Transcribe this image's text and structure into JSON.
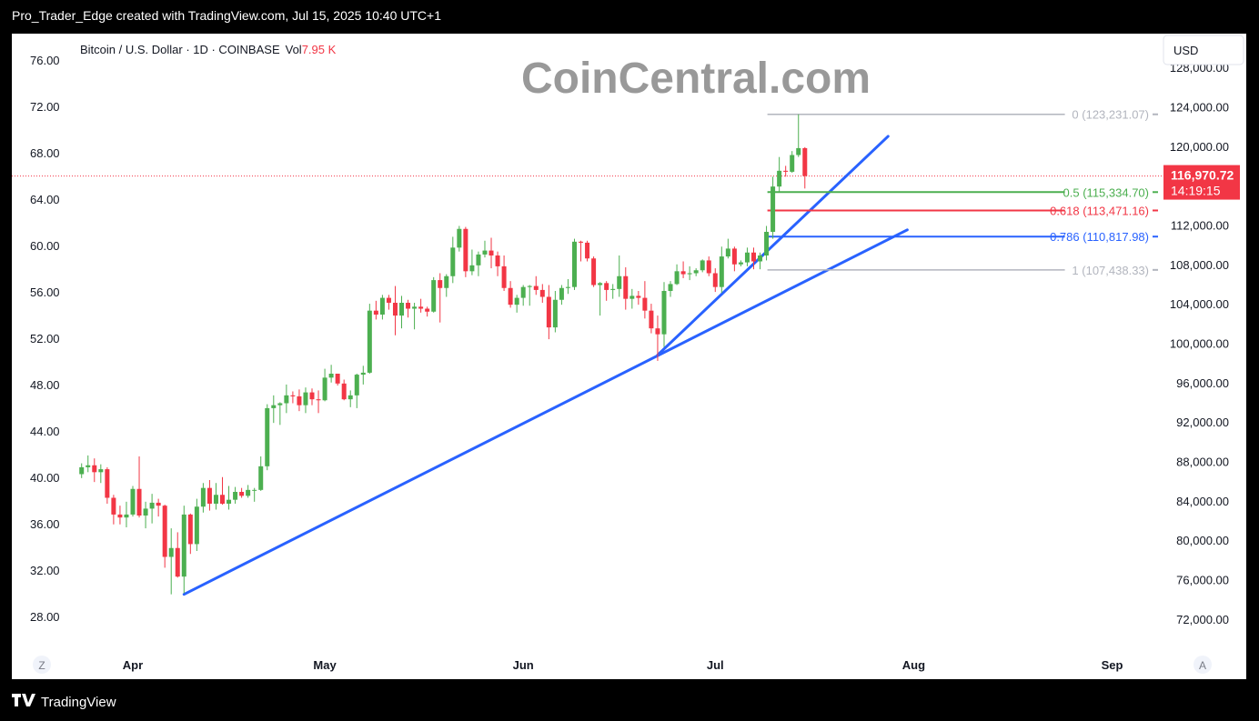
{
  "header": {
    "caption": "Pro_Trader_Edge created with TradingView.com, Jul 15, 2025 10:40 UTC+1"
  },
  "legend": {
    "symbol": "Bitcoin / U.S. Dollar · 1D · COINBASE",
    "vol_label": "Vol",
    "vol_value": "7.95 K",
    "vol_color": "#f23645"
  },
  "watermark": "CoinCentral.com",
  "currency_button": "USD",
  "corner_buttons": {
    "left": "Z",
    "right": "A"
  },
  "footer": {
    "brand": "TradingView"
  },
  "colors": {
    "up": "#4caf50",
    "down": "#f23645",
    "trend": "#2962ff",
    "fib_neutral": "#b2b5be"
  },
  "chart_data": {
    "type": "candlestick",
    "title": "Bitcoin / U.S. Dollar · 1D · COINBASE",
    "x_ticks": [
      "Apr",
      "May",
      "Jun",
      "Jul",
      "Aug",
      "Sep"
    ],
    "left_axis": {
      "ticks": [
        "76.00",
        "72.00",
        "68.00",
        "64.00",
        "60.00",
        "56.00",
        "52.00",
        "48.00",
        "44.00",
        "40.00",
        "36.00",
        "32.00",
        "28.00"
      ],
      "range": [
        26.5,
        77.5
      ]
    },
    "right_axis": {
      "ticks": [
        "128,000.00",
        "124,000.00",
        "120,000.00",
        "116,000.00",
        "112,000.00",
        "108,000.00",
        "104,000.00",
        "100,000.00",
        "96,000.00",
        "92,000.00",
        "88,000.00",
        "84,000.00",
        "80,000.00",
        "76,000.00",
        "72,000.00"
      ],
      "range": [
        70500,
        130500
      ]
    },
    "last_price": {
      "value": "116,970.72",
      "countdown": "14:19:15"
    },
    "fib_levels": [
      {
        "label": "0 (123,231.07)",
        "level": 0,
        "price": 123231.07,
        "color": "#b2b5be"
      },
      {
        "label": "0.5 (115,334.70)",
        "level": 0.5,
        "price": 115334.7,
        "color": "#4caf50"
      },
      {
        "label": "0.618 (113,471.16)",
        "level": 0.618,
        "price": 113471.16,
        "color": "#f23645"
      },
      {
        "label": "0.786 (110,817.98)",
        "level": 0.786,
        "price": 110817.98,
        "color": "#2962ff"
      },
      {
        "label": "1 (107,438.33)",
        "level": 1,
        "price": 107438.33,
        "color": "#b2b5be"
      }
    ],
    "trendlines": [
      {
        "from": {
          "date": "2025-04-09",
          "price": 74500
        },
        "to": {
          "date": "2025-07-31",
          "price": 111500
        }
      },
      {
        "from": {
          "date": "2025-06-22",
          "price": 98800
        },
        "to": {
          "date": "2025-07-28",
          "price": 121000
        }
      }
    ],
    "candles": [
      {
        "d": "2025-03-24",
        "o": 86700,
        "h": 87800,
        "l": 86300,
        "c": 87400
      },
      {
        "d": "2025-03-25",
        "o": 87400,
        "h": 88600,
        "l": 86900,
        "c": 87600
      },
      {
        "d": "2025-03-26",
        "o": 87600,
        "h": 88300,
        "l": 85900,
        "c": 86900
      },
      {
        "d": "2025-03-27",
        "o": 86900,
        "h": 87700,
        "l": 85800,
        "c": 87200
      },
      {
        "d": "2025-03-28",
        "o": 87200,
        "h": 87400,
        "l": 83700,
        "c": 84300
      },
      {
        "d": "2025-03-29",
        "o": 84300,
        "h": 84600,
        "l": 81600,
        "c": 82600
      },
      {
        "d": "2025-03-30",
        "o": 82600,
        "h": 83500,
        "l": 81600,
        "c": 82300
      },
      {
        "d": "2025-03-31",
        "o": 82300,
        "h": 83900,
        "l": 81300,
        "c": 82600
      },
      {
        "d": "2025-04-01",
        "o": 82600,
        "h": 85500,
        "l": 82400,
        "c": 85200
      },
      {
        "d": "2025-04-02",
        "o": 85200,
        "h": 88500,
        "l": 82300,
        "c": 82500
      },
      {
        "d": "2025-04-03",
        "o": 82500,
        "h": 83900,
        "l": 81200,
        "c": 83200
      },
      {
        "d": "2025-04-04",
        "o": 83200,
        "h": 84700,
        "l": 81700,
        "c": 83800
      },
      {
        "d": "2025-04-05",
        "o": 83800,
        "h": 84200,
        "l": 82400,
        "c": 83500
      },
      {
        "d": "2025-04-06",
        "o": 83500,
        "h": 83600,
        "l": 77200,
        "c": 78300
      },
      {
        "d": "2025-04-07",
        "o": 78300,
        "h": 81200,
        "l": 74500,
        "c": 79200
      },
      {
        "d": "2025-04-08",
        "o": 79200,
        "h": 80800,
        "l": 76200,
        "c": 76300
      },
      {
        "d": "2025-04-09",
        "o": 76300,
        "h": 83500,
        "l": 74600,
        "c": 82600
      },
      {
        "d": "2025-04-10",
        "o": 82600,
        "h": 82700,
        "l": 78600,
        "c": 79600
      },
      {
        "d": "2025-04-11",
        "o": 79600,
        "h": 84200,
        "l": 78900,
        "c": 83400
      },
      {
        "d": "2025-04-12",
        "o": 83400,
        "h": 85800,
        "l": 82800,
        "c": 85300
      },
      {
        "d": "2025-04-13",
        "o": 85300,
        "h": 86100,
        "l": 83000,
        "c": 83700
      },
      {
        "d": "2025-04-14",
        "o": 83700,
        "h": 85800,
        "l": 83100,
        "c": 84600
      },
      {
        "d": "2025-04-15",
        "o": 84600,
        "h": 86400,
        "l": 83600,
        "c": 83700
      },
      {
        "d": "2025-04-16",
        "o": 83700,
        "h": 85500,
        "l": 83100,
        "c": 84100
      },
      {
        "d": "2025-04-17",
        "o": 84100,
        "h": 85400,
        "l": 83700,
        "c": 84900
      },
      {
        "d": "2025-04-18",
        "o": 84900,
        "h": 85300,
        "l": 84300,
        "c": 84500
      },
      {
        "d": "2025-04-19",
        "o": 84500,
        "h": 85600,
        "l": 84300,
        "c": 85100
      },
      {
        "d": "2025-04-20",
        "o": 85100,
        "h": 85300,
        "l": 83900,
        "c": 85100
      },
      {
        "d": "2025-04-21",
        "o": 85100,
        "h": 88500,
        "l": 85000,
        "c": 87500
      },
      {
        "d": "2025-04-22",
        "o": 87500,
        "h": 93800,
        "l": 87100,
        "c": 93400
      },
      {
        "d": "2025-04-23",
        "o": 93400,
        "h": 94700,
        "l": 91900,
        "c": 93700
      },
      {
        "d": "2025-04-24",
        "o": 93700,
        "h": 94000,
        "l": 91700,
        "c": 93900
      },
      {
        "d": "2025-04-25",
        "o": 93900,
        "h": 95800,
        "l": 92900,
        "c": 94700
      },
      {
        "d": "2025-04-26",
        "o": 94700,
        "h": 95100,
        "l": 93900,
        "c": 94600
      },
      {
        "d": "2025-04-27",
        "o": 94600,
        "h": 95300,
        "l": 93100,
        "c": 93700
      },
      {
        "d": "2025-04-28",
        "o": 93700,
        "h": 95500,
        "l": 92900,
        "c": 95000
      },
      {
        "d": "2025-04-29",
        "o": 95000,
        "h": 95400,
        "l": 93700,
        "c": 94300
      },
      {
        "d": "2025-04-30",
        "o": 94300,
        "h": 95200,
        "l": 92900,
        "c": 94200
      },
      {
        "d": "2025-05-01",
        "o": 94200,
        "h": 97400,
        "l": 94100,
        "c": 96500
      },
      {
        "d": "2025-05-02",
        "o": 96500,
        "h": 97800,
        "l": 96000,
        "c": 96900
      },
      {
        "d": "2025-05-03",
        "o": 96900,
        "h": 96900,
        "l": 95700,
        "c": 95900
      },
      {
        "d": "2025-05-04",
        "o": 95900,
        "h": 96300,
        "l": 94200,
        "c": 94300
      },
      {
        "d": "2025-05-05",
        "o": 94300,
        "h": 95200,
        "l": 93500,
        "c": 94700
      },
      {
        "d": "2025-05-06",
        "o": 94700,
        "h": 96900,
        "l": 93400,
        "c": 96800
      },
      {
        "d": "2025-05-07",
        "o": 96800,
        "h": 97700,
        "l": 95800,
        "c": 97000
      },
      {
        "d": "2025-05-08",
        "o": 97000,
        "h": 104000,
        "l": 96900,
        "c": 103300
      },
      {
        "d": "2025-05-09",
        "o": 103300,
        "h": 104300,
        "l": 102400,
        "c": 102900
      },
      {
        "d": "2025-05-10",
        "o": 102900,
        "h": 104900,
        "l": 102400,
        "c": 104600
      },
      {
        "d": "2025-05-11",
        "o": 104600,
        "h": 104900,
        "l": 103400,
        "c": 104100
      },
      {
        "d": "2025-05-12",
        "o": 104100,
        "h": 105800,
        "l": 100800,
        "c": 102800
      },
      {
        "d": "2025-05-13",
        "o": 102800,
        "h": 104800,
        "l": 101500,
        "c": 104100
      },
      {
        "d": "2025-05-14",
        "o": 104100,
        "h": 104400,
        "l": 102600,
        "c": 103500
      },
      {
        "d": "2025-05-15",
        "o": 103500,
        "h": 104100,
        "l": 101400,
        "c": 103700
      },
      {
        "d": "2025-05-16",
        "o": 103700,
        "h": 104500,
        "l": 103100,
        "c": 103500
      },
      {
        "d": "2025-05-17",
        "o": 103500,
        "h": 103700,
        "l": 102700,
        "c": 103200
      },
      {
        "d": "2025-05-18",
        "o": 103200,
        "h": 106700,
        "l": 103100,
        "c": 106400
      },
      {
        "d": "2025-05-19",
        "o": 106400,
        "h": 107100,
        "l": 102100,
        "c": 105600
      },
      {
        "d": "2025-05-20",
        "o": 105600,
        "h": 107000,
        "l": 104700,
        "c": 106800
      },
      {
        "d": "2025-05-21",
        "o": 106800,
        "h": 110800,
        "l": 106100,
        "c": 109700
      },
      {
        "d": "2025-05-22",
        "o": 109700,
        "h": 111900,
        "l": 109300,
        "c": 111600
      },
      {
        "d": "2025-05-23",
        "o": 111600,
        "h": 111800,
        "l": 106700,
        "c": 107300
      },
      {
        "d": "2025-05-24",
        "o": 107300,
        "h": 109500,
        "l": 106900,
        "c": 107900
      },
      {
        "d": "2025-05-25",
        "o": 107900,
        "h": 109300,
        "l": 106800,
        "c": 109000
      },
      {
        "d": "2025-05-26",
        "o": 109000,
        "h": 110400,
        "l": 108700,
        "c": 109400
      },
      {
        "d": "2025-05-27",
        "o": 109400,
        "h": 110700,
        "l": 107600,
        "c": 108900
      },
      {
        "d": "2025-05-28",
        "o": 108900,
        "h": 109300,
        "l": 106800,
        "c": 107800
      },
      {
        "d": "2025-05-29",
        "o": 107800,
        "h": 108900,
        "l": 105300,
        "c": 105600
      },
      {
        "d": "2025-05-30",
        "o": 105600,
        "h": 106300,
        "l": 103600,
        "c": 103900
      },
      {
        "d": "2025-05-31",
        "o": 103900,
        "h": 104900,
        "l": 103100,
        "c": 104600
      },
      {
        "d": "2025-06-01",
        "o": 104600,
        "h": 105900,
        "l": 103800,
        "c": 105700
      },
      {
        "d": "2025-06-02",
        "o": 105700,
        "h": 105900,
        "l": 103800,
        "c": 105800
      },
      {
        "d": "2025-06-03",
        "o": 105800,
        "h": 106800,
        "l": 104900,
        "c": 105400
      },
      {
        "d": "2025-06-04",
        "o": 105400,
        "h": 106000,
        "l": 104100,
        "c": 104700
      },
      {
        "d": "2025-06-05",
        "o": 104700,
        "h": 105900,
        "l": 100400,
        "c": 101600
      },
      {
        "d": "2025-06-06",
        "o": 101600,
        "h": 105300,
        "l": 101100,
        "c": 104400
      },
      {
        "d": "2025-06-07",
        "o": 104400,
        "h": 105900,
        "l": 103900,
        "c": 105600
      },
      {
        "d": "2025-06-08",
        "o": 105600,
        "h": 106500,
        "l": 105000,
        "c": 105700
      },
      {
        "d": "2025-06-09",
        "o": 105700,
        "h": 110600,
        "l": 105400,
        "c": 110300
      },
      {
        "d": "2025-06-10",
        "o": 110300,
        "h": 110400,
        "l": 108300,
        "c": 110200
      },
      {
        "d": "2025-06-11",
        "o": 110200,
        "h": 110400,
        "l": 108300,
        "c": 108600
      },
      {
        "d": "2025-06-12",
        "o": 108600,
        "h": 108800,
        "l": 105700,
        "c": 105900
      },
      {
        "d": "2025-06-13",
        "o": 105900,
        "h": 106200,
        "l": 102800,
        "c": 106100
      },
      {
        "d": "2025-06-14",
        "o": 106100,
        "h": 106300,
        "l": 104300,
        "c": 105400
      },
      {
        "d": "2025-06-15",
        "o": 105400,
        "h": 106000,
        "l": 104500,
        "c": 105500
      },
      {
        "d": "2025-06-16",
        "o": 105500,
        "h": 108900,
        "l": 104700,
        "c": 106800
      },
      {
        "d": "2025-06-17",
        "o": 106800,
        "h": 107700,
        "l": 103400,
        "c": 104500
      },
      {
        "d": "2025-06-18",
        "o": 104500,
        "h": 105500,
        "l": 103500,
        "c": 104800
      },
      {
        "d": "2025-06-19",
        "o": 104800,
        "h": 105300,
        "l": 103900,
        "c": 104600
      },
      {
        "d": "2025-06-20",
        "o": 104600,
        "h": 106300,
        "l": 102500,
        "c": 103300
      },
      {
        "d": "2025-06-21",
        "o": 103300,
        "h": 104000,
        "l": 101000,
        "c": 101500
      },
      {
        "d": "2025-06-22",
        "o": 101500,
        "h": 102800,
        "l": 98200,
        "c": 100900
      },
      {
        "d": "2025-06-23",
        "o": 100900,
        "h": 106200,
        "l": 99600,
        "c": 105300
      },
      {
        "d": "2025-06-24",
        "o": 105300,
        "h": 106300,
        "l": 104700,
        "c": 106000
      },
      {
        "d": "2025-06-25",
        "o": 106000,
        "h": 108000,
        "l": 105900,
        "c": 107300
      },
      {
        "d": "2025-06-26",
        "o": 107300,
        "h": 108300,
        "l": 106600,
        "c": 107000
      },
      {
        "d": "2025-06-27",
        "o": 107000,
        "h": 107800,
        "l": 106400,
        "c": 107100
      },
      {
        "d": "2025-06-28",
        "o": 107100,
        "h": 107600,
        "l": 106800,
        "c": 107400
      },
      {
        "d": "2025-06-29",
        "o": 107400,
        "h": 108500,
        "l": 107200,
        "c": 108400
      },
      {
        "d": "2025-06-30",
        "o": 108400,
        "h": 108800,
        "l": 106800,
        "c": 107100
      },
      {
        "d": "2025-07-01",
        "o": 107100,
        "h": 107600,
        "l": 105200,
        "c": 105700
      },
      {
        "d": "2025-07-02",
        "o": 105700,
        "h": 109800,
        "l": 105100,
        "c": 108800
      },
      {
        "d": "2025-07-03",
        "o": 108800,
        "h": 110600,
        "l": 108600,
        "c": 109600
      },
      {
        "d": "2025-07-04",
        "o": 109600,
        "h": 109800,
        "l": 107300,
        "c": 108000
      },
      {
        "d": "2025-07-05",
        "o": 108000,
        "h": 108400,
        "l": 107800,
        "c": 108200
      },
      {
        "d": "2025-07-06",
        "o": 108200,
        "h": 109700,
        "l": 107800,
        "c": 109200
      },
      {
        "d": "2025-07-07",
        "o": 109200,
        "h": 109700,
        "l": 107500,
        "c": 108300
      },
      {
        "d": "2025-07-08",
        "o": 108300,
        "h": 109200,
        "l": 107500,
        "c": 108900
      },
      {
        "d": "2025-07-09",
        "o": 108900,
        "h": 111900,
        "l": 108400,
        "c": 111300
      },
      {
        "d": "2025-07-10",
        "o": 111300,
        "h": 116900,
        "l": 110600,
        "c": 115900
      },
      {
        "d": "2025-07-11",
        "o": 115900,
        "h": 118900,
        "l": 115300,
        "c": 117500
      },
      {
        "d": "2025-07-12",
        "o": 117500,
        "h": 118000,
        "l": 116900,
        "c": 117400
      },
      {
        "d": "2025-07-13",
        "o": 117400,
        "h": 119500,
        "l": 117300,
        "c": 119100
      },
      {
        "d": "2025-07-14",
        "o": 119100,
        "h": 123231,
        "l": 118900,
        "c": 119800
      },
      {
        "d": "2025-07-15",
        "o": 119800,
        "h": 119900,
        "l": 115700,
        "c": 116970
      }
    ]
  }
}
